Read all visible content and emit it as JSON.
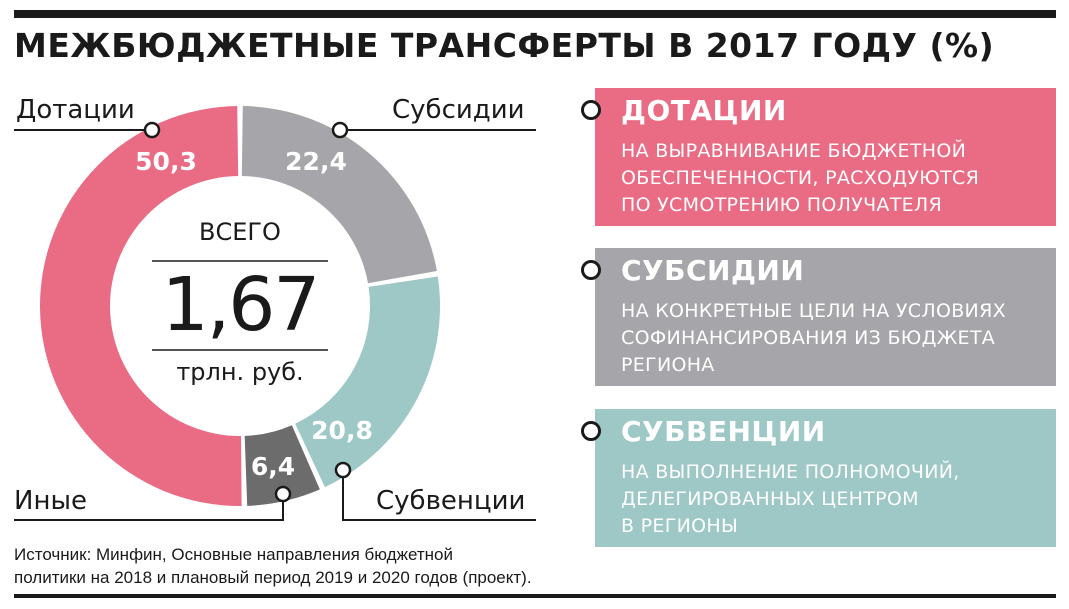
{
  "title": "МЕЖБЮДЖЕТНЫЕ ТРАНСФЕРТЫ В 2017 ГОДУ (%)",
  "center": {
    "top": "ВСЕГО",
    "value": "1,67",
    "unit": "трлн. руб."
  },
  "colors": {
    "dotatsii": "#e96b84",
    "subsidii": "#a6a6aa",
    "subventsii": "#9ec8c6",
    "inye": "#6c6c6c",
    "dark": "#1a1a1a"
  },
  "chart_data": {
    "type": "pie",
    "donut": true,
    "categories": [
      "Дотации",
      "Субсидии",
      "Субвенции",
      "Иные"
    ],
    "values": [
      50.3,
      22.4,
      20.8,
      6.4
    ],
    "value_labels": [
      "50,3",
      "22,4",
      "20,8",
      "6,4"
    ],
    "title": "МЕЖБЮДЖЕТНЫЕ ТРАНСФЕРТЫ В 2017 ГОДУ (%)",
    "order": "clockwise from top: Субсидии, Субвенции, Иные, Дотации"
  },
  "panels": [
    {
      "title": "ДОТАЦИИ",
      "desc": "НА ВЫРАВНИВАНИЕ БЮДЖЕТНОЙ\nОБЕСПЕЧЕННОСТИ, РАСХОДУЮТСЯ\nПО УСМОТРЕНИЮ ПОЛУЧАТЕЛЯ"
    },
    {
      "title": "СУБСИДИИ",
      "desc": "НА КОНКРЕТНЫЕ ЦЕЛИ НА УСЛОВИЯХ\nСОФИНАНСИРОВАНИЯ ИЗ БЮДЖЕТА\nРЕГИОНА"
    },
    {
      "title": "СУБВЕНЦИИ",
      "desc": "НА ВЫПОЛНЕНИЕ ПОЛНОМОЧИЙ,\nДЕЛЕГИРОВАННЫХ ЦЕНТРОМ\nВ РЕГИОНЫ"
    }
  ],
  "source": {
    "line1": "Источник: Минфин, Основные направления бюджетной",
    "line2": "политики на 2018 и плановый период 2019 и 2020 годов (проект)."
  }
}
